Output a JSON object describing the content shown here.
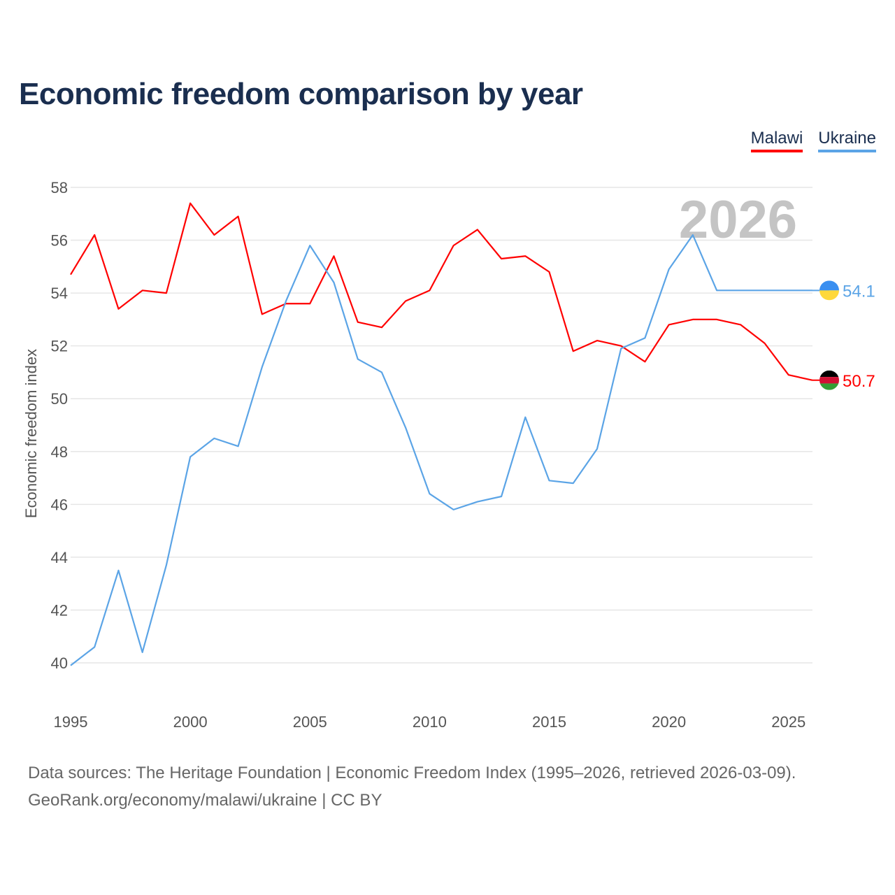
{
  "chart_data": {
    "type": "line",
    "title": "Economic freedom comparison by year",
    "xlabel": "",
    "ylabel": "Economic freedom index",
    "xlim": [
      1995,
      2026
    ],
    "ylim": [
      40,
      58
    ],
    "x_ticks": [
      1995,
      2000,
      2005,
      2010,
      2015,
      2020,
      2025
    ],
    "y_ticks": [
      40,
      42,
      44,
      46,
      48,
      50,
      52,
      54,
      56,
      58
    ],
    "grid": true,
    "legend_position": "top-right",
    "year_watermark": "2026",
    "x": [
      1995,
      1996,
      1997,
      1998,
      1999,
      2000,
      2001,
      2002,
      2003,
      2004,
      2005,
      2006,
      2007,
      2008,
      2009,
      2010,
      2011,
      2012,
      2013,
      2014,
      2015,
      2016,
      2017,
      2018,
      2019,
      2020,
      2021,
      2022,
      2023,
      2024,
      2025,
      2026
    ],
    "series": [
      {
        "name": "Malawi",
        "color": "#ff0000",
        "end_label": "50.7",
        "values": [
          54.7,
          56.2,
          53.4,
          54.1,
          54.0,
          57.4,
          56.2,
          56.9,
          53.2,
          53.6,
          53.6,
          55.4,
          52.9,
          52.7,
          53.7,
          54.1,
          55.8,
          56.4,
          55.3,
          55.4,
          54.8,
          51.8,
          52.2,
          52.0,
          51.4,
          52.8,
          53.0,
          53.0,
          52.8,
          52.1,
          50.9,
          50.7
        ]
      },
      {
        "name": "Ukraine",
        "color": "#5ba4e6",
        "end_label": "54.1",
        "values": [
          39.9,
          40.6,
          43.5,
          40.4,
          43.7,
          47.8,
          48.5,
          48.2,
          51.2,
          53.7,
          55.8,
          54.4,
          51.5,
          51.0,
          48.9,
          46.4,
          45.8,
          46.1,
          46.3,
          49.3,
          46.9,
          46.8,
          48.1,
          51.9,
          52.3,
          54.9,
          56.2,
          54.1,
          54.1,
          54.1,
          54.1,
          54.1
        ]
      }
    ]
  },
  "footer": {
    "line1": "Data sources: The Heritage Foundation | Economic Freedom Index (1995–2026, retrieved 2026-03-09).",
    "line2": "GeoRank.org/economy/malawi/ukraine | CC BY"
  }
}
